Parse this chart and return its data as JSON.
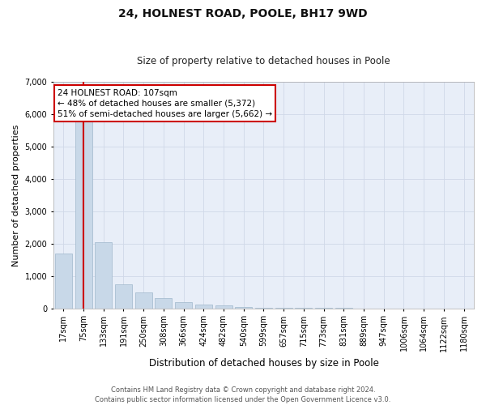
{
  "title": "24, HOLNEST ROAD, POOLE, BH17 9WD",
  "subtitle": "Size of property relative to detached houses in Poole",
  "xlabel": "Distribution of detached houses by size in Poole",
  "ylabel": "Number of detached properties",
  "footer_line1": "Contains HM Land Registry data © Crown copyright and database right 2024.",
  "footer_line2": "Contains public sector information licensed under the Open Government Licence v3.0.",
  "bar_color": "#c8d8e8",
  "bar_edge_color": "#a0b8cc",
  "vline_color": "#cc0000",
  "vline_x_index": 1,
  "annotation_text": "24 HOLNEST ROAD: 107sqm\n← 48% of detached houses are smaller (5,372)\n51% of semi-detached houses are larger (5,662) →",
  "annotation_box_facecolor": "#ffffff",
  "annotation_box_edgecolor": "#cc0000",
  "categories": [
    "17sqm",
    "75sqm",
    "133sqm",
    "191sqm",
    "250sqm",
    "308sqm",
    "366sqm",
    "424sqm",
    "482sqm",
    "540sqm",
    "599sqm",
    "657sqm",
    "715sqm",
    "773sqm",
    "831sqm",
    "889sqm",
    "947sqm",
    "1006sqm",
    "1064sqm",
    "1122sqm",
    "1180sqm"
  ],
  "values": [
    1700,
    5900,
    2050,
    750,
    480,
    310,
    195,
    120,
    80,
    50,
    25,
    8,
    4,
    1,
    1,
    0,
    0,
    0,
    0,
    0,
    0
  ],
  "ylim": [
    0,
    7000
  ],
  "yticks": [
    0,
    1000,
    2000,
    3000,
    4000,
    5000,
    6000,
    7000
  ],
  "grid_color": "#d0d8e8",
  "plot_bg_color": "#e8eef8",
  "fig_bg_color": "#ffffff",
  "title_fontsize": 10,
  "subtitle_fontsize": 8.5,
  "xlabel_fontsize": 8.5,
  "ylabel_fontsize": 8,
  "tick_fontsize": 7,
  "annotation_fontsize": 7.5,
  "footer_fontsize": 6
}
